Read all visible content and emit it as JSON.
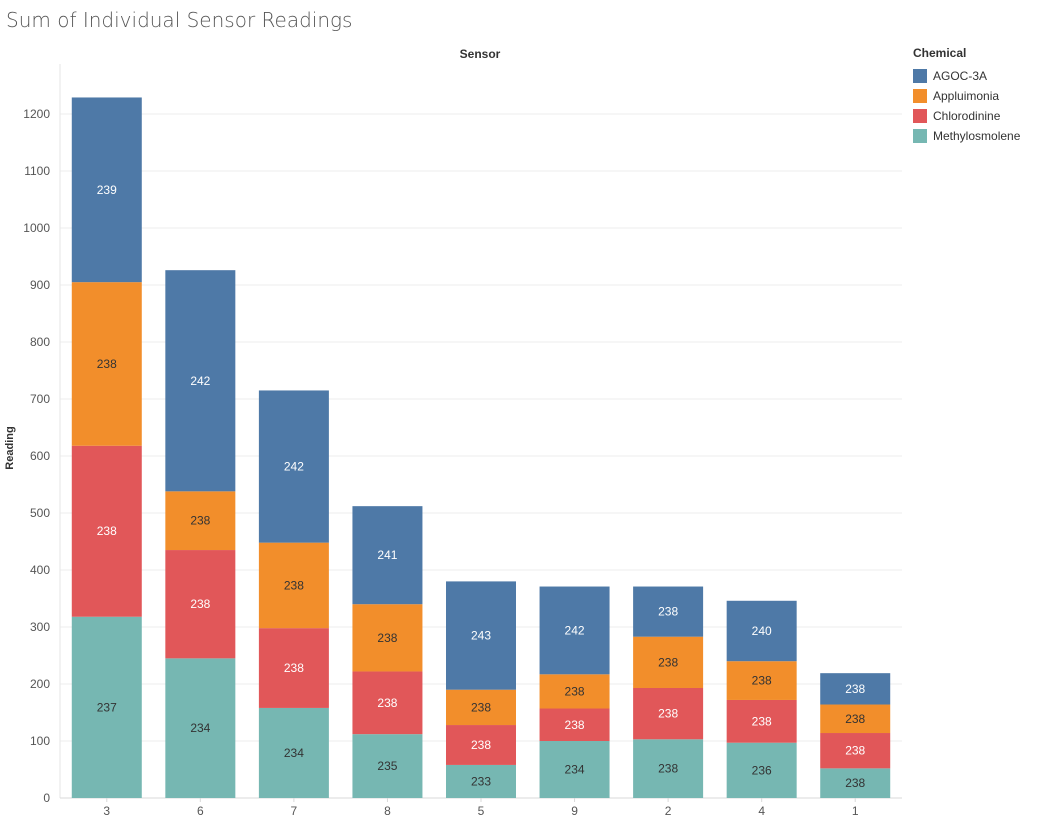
{
  "chart_data": {
    "type": "bar",
    "stacked": true,
    "title": "Sum of Individual Sensor Readings",
    "column_header": "Sensor",
    "ylabel": "Reading",
    "legend_title": "Chemical",
    "ylim": [
      0,
      1240
    ],
    "yticks": [
      0,
      100,
      200,
      300,
      400,
      500,
      600,
      700,
      800,
      900,
      1000,
      1100,
      1200
    ],
    "grid": true,
    "legend_position": "top-right",
    "categories": [
      "3",
      "6",
      "7",
      "8",
      "5",
      "9",
      "2",
      "4",
      "1"
    ],
    "series": [
      {
        "name": "Methylosmolene",
        "color": "#76b7b2",
        "text_color": "#333333",
        "values": [
          318,
          245,
          158,
          112,
          58,
          100,
          103,
          97,
          52
        ],
        "labels": [
          "237",
          "234",
          "234",
          "235",
          "233",
          "234",
          "238",
          "236",
          "238"
        ]
      },
      {
        "name": "Chlorodinine",
        "color": "#e15759",
        "text_color": "#ffffff",
        "values": [
          300,
          190,
          140,
          110,
          70,
          57,
          90,
          75,
          62
        ],
        "labels": [
          "238",
          "238",
          "238",
          "238",
          "238",
          "238",
          "238",
          "238",
          "238"
        ]
      },
      {
        "name": "Appluimonia",
        "color": "#f28e2b",
        "text_color": "#333333",
        "values": [
          287,
          103,
          150,
          118,
          62,
          60,
          90,
          68,
          50
        ],
        "labels": [
          "238",
          "238",
          "238",
          "238",
          "238",
          "238",
          "238",
          "238",
          "238"
        ]
      },
      {
        "name": "AGOC-3A",
        "color": "#4e79a7",
        "text_color": "#ffffff",
        "values": [
          324,
          388,
          267,
          172,
          190,
          154,
          88,
          106,
          55
        ],
        "labels": [
          "239",
          "242",
          "242",
          "241",
          "243",
          "242",
          "238",
          "240",
          "238"
        ]
      }
    ]
  }
}
